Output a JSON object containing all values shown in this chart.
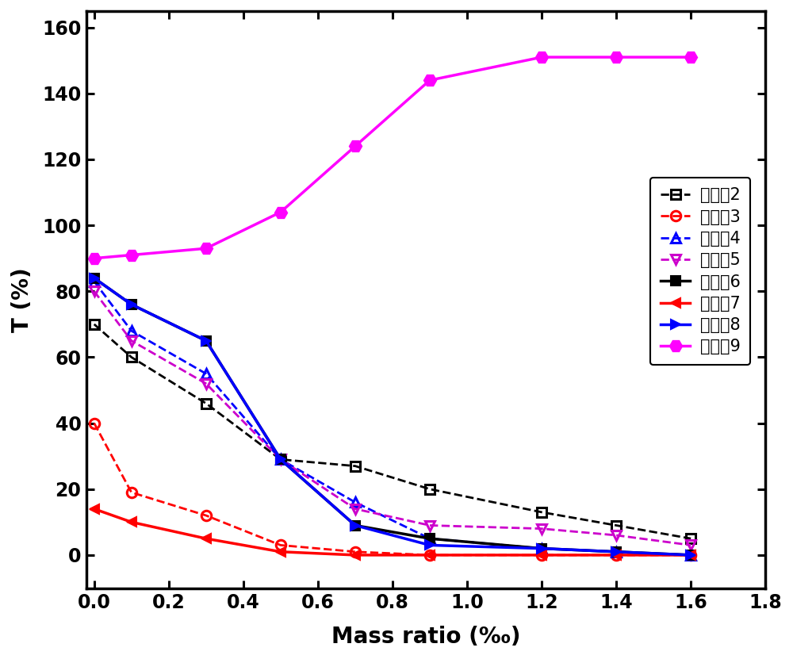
{
  "title": "",
  "xlabel": "Mass ratio (‰)",
  "ylabel": "T (%)",
  "xlim": [
    -0.02,
    1.8
  ],
  "ylim": [
    -10,
    165
  ],
  "yticks": [
    0,
    20,
    40,
    60,
    80,
    100,
    120,
    140,
    160
  ],
  "xticks": [
    0.0,
    0.2,
    0.4,
    0.6,
    0.8,
    1.0,
    1.2,
    1.4,
    1.6,
    1.8
  ],
  "series": [
    {
      "label": "实施例2",
      "color": "#000000",
      "linestyle": "--",
      "marker": "s",
      "markerface": "none",
      "linewidth": 2.0,
      "markersize": 9,
      "x": [
        0.0,
        0.1,
        0.3,
        0.5,
        0.7,
        0.9,
        1.2,
        1.4,
        1.6
      ],
      "y": [
        70,
        60,
        46,
        29,
        27,
        20,
        13,
        9,
        5
      ]
    },
    {
      "label": "实施例3",
      "color": "#ff0000",
      "linestyle": "--",
      "marker": "o",
      "markerface": "none",
      "linewidth": 2.0,
      "markersize": 9,
      "x": [
        0.0,
        0.1,
        0.3,
        0.5,
        0.7,
        0.9,
        1.2,
        1.4,
        1.6
      ],
      "y": [
        40,
        19,
        12,
        3,
        1,
        0,
        0,
        0,
        0
      ]
    },
    {
      "label": "实施例4",
      "color": "#0000ff",
      "linestyle": "--",
      "marker": "^",
      "markerface": "none",
      "linewidth": 2.0,
      "markersize": 9,
      "x": [
        0.0,
        0.1,
        0.3,
        0.5,
        0.7,
        0.9,
        1.2,
        1.4,
        1.6
      ],
      "y": [
        83,
        68,
        55,
        29,
        16,
        5,
        2,
        1,
        0
      ]
    },
    {
      "label": "实施例5",
      "color": "#cc00cc",
      "linestyle": "--",
      "marker": "v",
      "markerface": "none",
      "linewidth": 2.0,
      "markersize": 9,
      "x": [
        0.0,
        0.1,
        0.3,
        0.5,
        0.7,
        0.9,
        1.2,
        1.4,
        1.6
      ],
      "y": [
        80,
        65,
        52,
        29,
        14,
        9,
        8,
        6,
        3
      ]
    },
    {
      "label": "实施例6",
      "color": "#000000",
      "linestyle": "-",
      "marker": "s",
      "markerface": "full",
      "linewidth": 2.5,
      "markersize": 9,
      "x": [
        0.0,
        0.1,
        0.3,
        0.5,
        0.7,
        0.9,
        1.2,
        1.4,
        1.6
      ],
      "y": [
        84,
        76,
        65,
        29,
        9,
        5,
        2,
        1,
        0
      ]
    },
    {
      "label": "实施例7",
      "color": "#ff0000",
      "linestyle": "-",
      "marker": "<",
      "markerface": "full",
      "linewidth": 2.5,
      "markersize": 9,
      "x": [
        0.0,
        0.1,
        0.3,
        0.5,
        0.7,
        0.9,
        1.2,
        1.4,
        1.6
      ],
      "y": [
        14,
        10,
        5,
        1,
        0,
        0,
        0,
        0,
        0
      ]
    },
    {
      "label": "实施例8",
      "color": "#0000ff",
      "linestyle": "-",
      "marker": ">",
      "markerface": "full",
      "linewidth": 2.5,
      "markersize": 9,
      "x": [
        0.0,
        0.1,
        0.3,
        0.5,
        0.7,
        0.9,
        1.2,
        1.4,
        1.6
      ],
      "y": [
        84,
        76,
        65,
        29,
        9,
        3,
        2,
        1,
        0
      ]
    },
    {
      "label": "实施例9",
      "color": "#ff00ff",
      "linestyle": "-",
      "marker": "H",
      "markerface": "full",
      "linewidth": 2.5,
      "markersize": 11,
      "x": [
        0.0,
        0.1,
        0.3,
        0.5,
        0.7,
        0.9,
        1.2,
        1.4,
        1.6
      ],
      "y": [
        90,
        91,
        93,
        104,
        124,
        144,
        151,
        151,
        151
      ]
    }
  ],
  "fontsize_label": 20,
  "fontsize_tick": 17,
  "fontsize_legend": 15
}
